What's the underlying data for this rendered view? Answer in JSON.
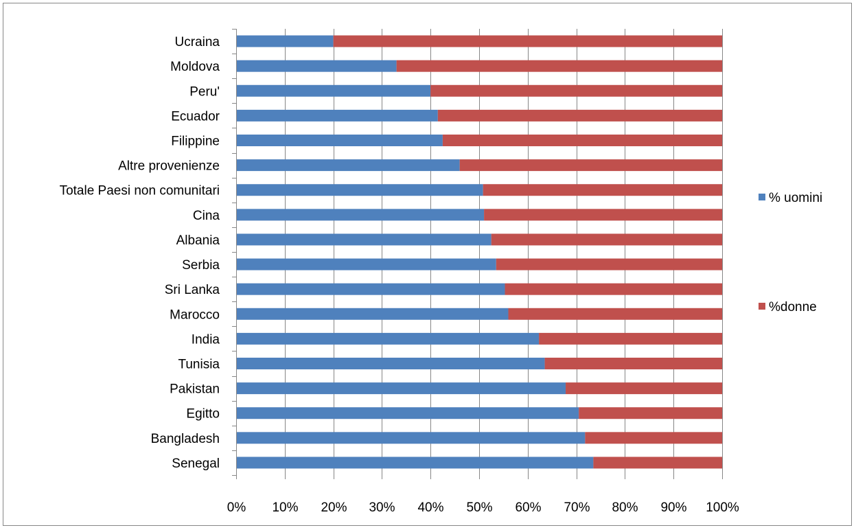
{
  "chart_data": {
    "type": "bar",
    "orientation": "horizontal",
    "stacked": "percent",
    "categories": [
      "Ucraina",
      "Moldova",
      "Peru'",
      "Ecuador",
      "Filippine",
      "Altre provenienze",
      "Totale Paesi non comunitari",
      "Cina",
      "Albania",
      "Serbia",
      "Sri Lanka",
      "Marocco",
      "India",
      "Tunisia",
      "Pakistan",
      "Egitto",
      "Bangladesh",
      "Senegal"
    ],
    "series": [
      {
        "name": "% uomini",
        "color": "#4F81BD",
        "values": [
          20,
          33,
          40,
          41.5,
          42.5,
          46,
          50.8,
          51,
          52.5,
          53.5,
          55.3,
          56,
          62.3,
          63.5,
          67.8,
          70.5,
          71.8,
          73.5
        ]
      },
      {
        "name": "%donne",
        "color": "#C0504D",
        "values": [
          80,
          67,
          60,
          58.5,
          57.5,
          54,
          49.2,
          49,
          47.5,
          46.5,
          44.7,
          44,
          37.7,
          36.5,
          32.2,
          29.5,
          28.2,
          26.5
        ]
      }
    ],
    "xticks": [
      "0%",
      "10%",
      "20%",
      "30%",
      "40%",
      "50%",
      "60%",
      "70%",
      "80%",
      "90%",
      "100%"
    ],
    "xlim": [
      0,
      100
    ],
    "legend_position": "right",
    "grid": "vertical major gridlines"
  }
}
